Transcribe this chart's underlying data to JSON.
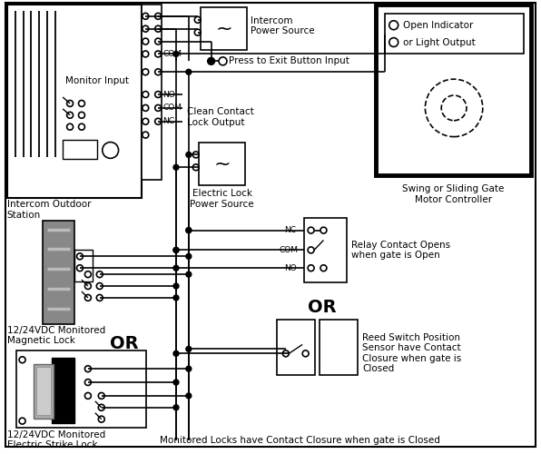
{
  "bg_color": "#ffffff",
  "line_color": "#000000",
  "labels": {
    "intercom_outdoor": "Intercom Outdoor\nStation",
    "monitor_input": "Monitor Input",
    "intercom_ps": "Intercom\nPower Source",
    "press_to_exit": "Press to Exit Button Input",
    "clean_contact": "Clean Contact\nLock Output",
    "electric_lock_ps": "Electric Lock\nPower Source",
    "magnetic_lock": "12/24VDC Monitored\nMagnetic Lock",
    "electric_strike": "12/24VDC Monitored\nElectric Strike Lock",
    "relay_contact": "Relay Contact Opens\nwhen gate is Open",
    "reed_switch": "Reed Switch Position\nSensor have Contact\nClosure when gate is\nClosed",
    "gate_controller": "Swing or Sliding Gate\nMotor Controller",
    "open_indicator": "Open Indicator\nor Light Output",
    "monitored_locks": "Monitored Locks have Contact Closure when gate is Closed",
    "or1": "OR",
    "or2": "OR"
  }
}
